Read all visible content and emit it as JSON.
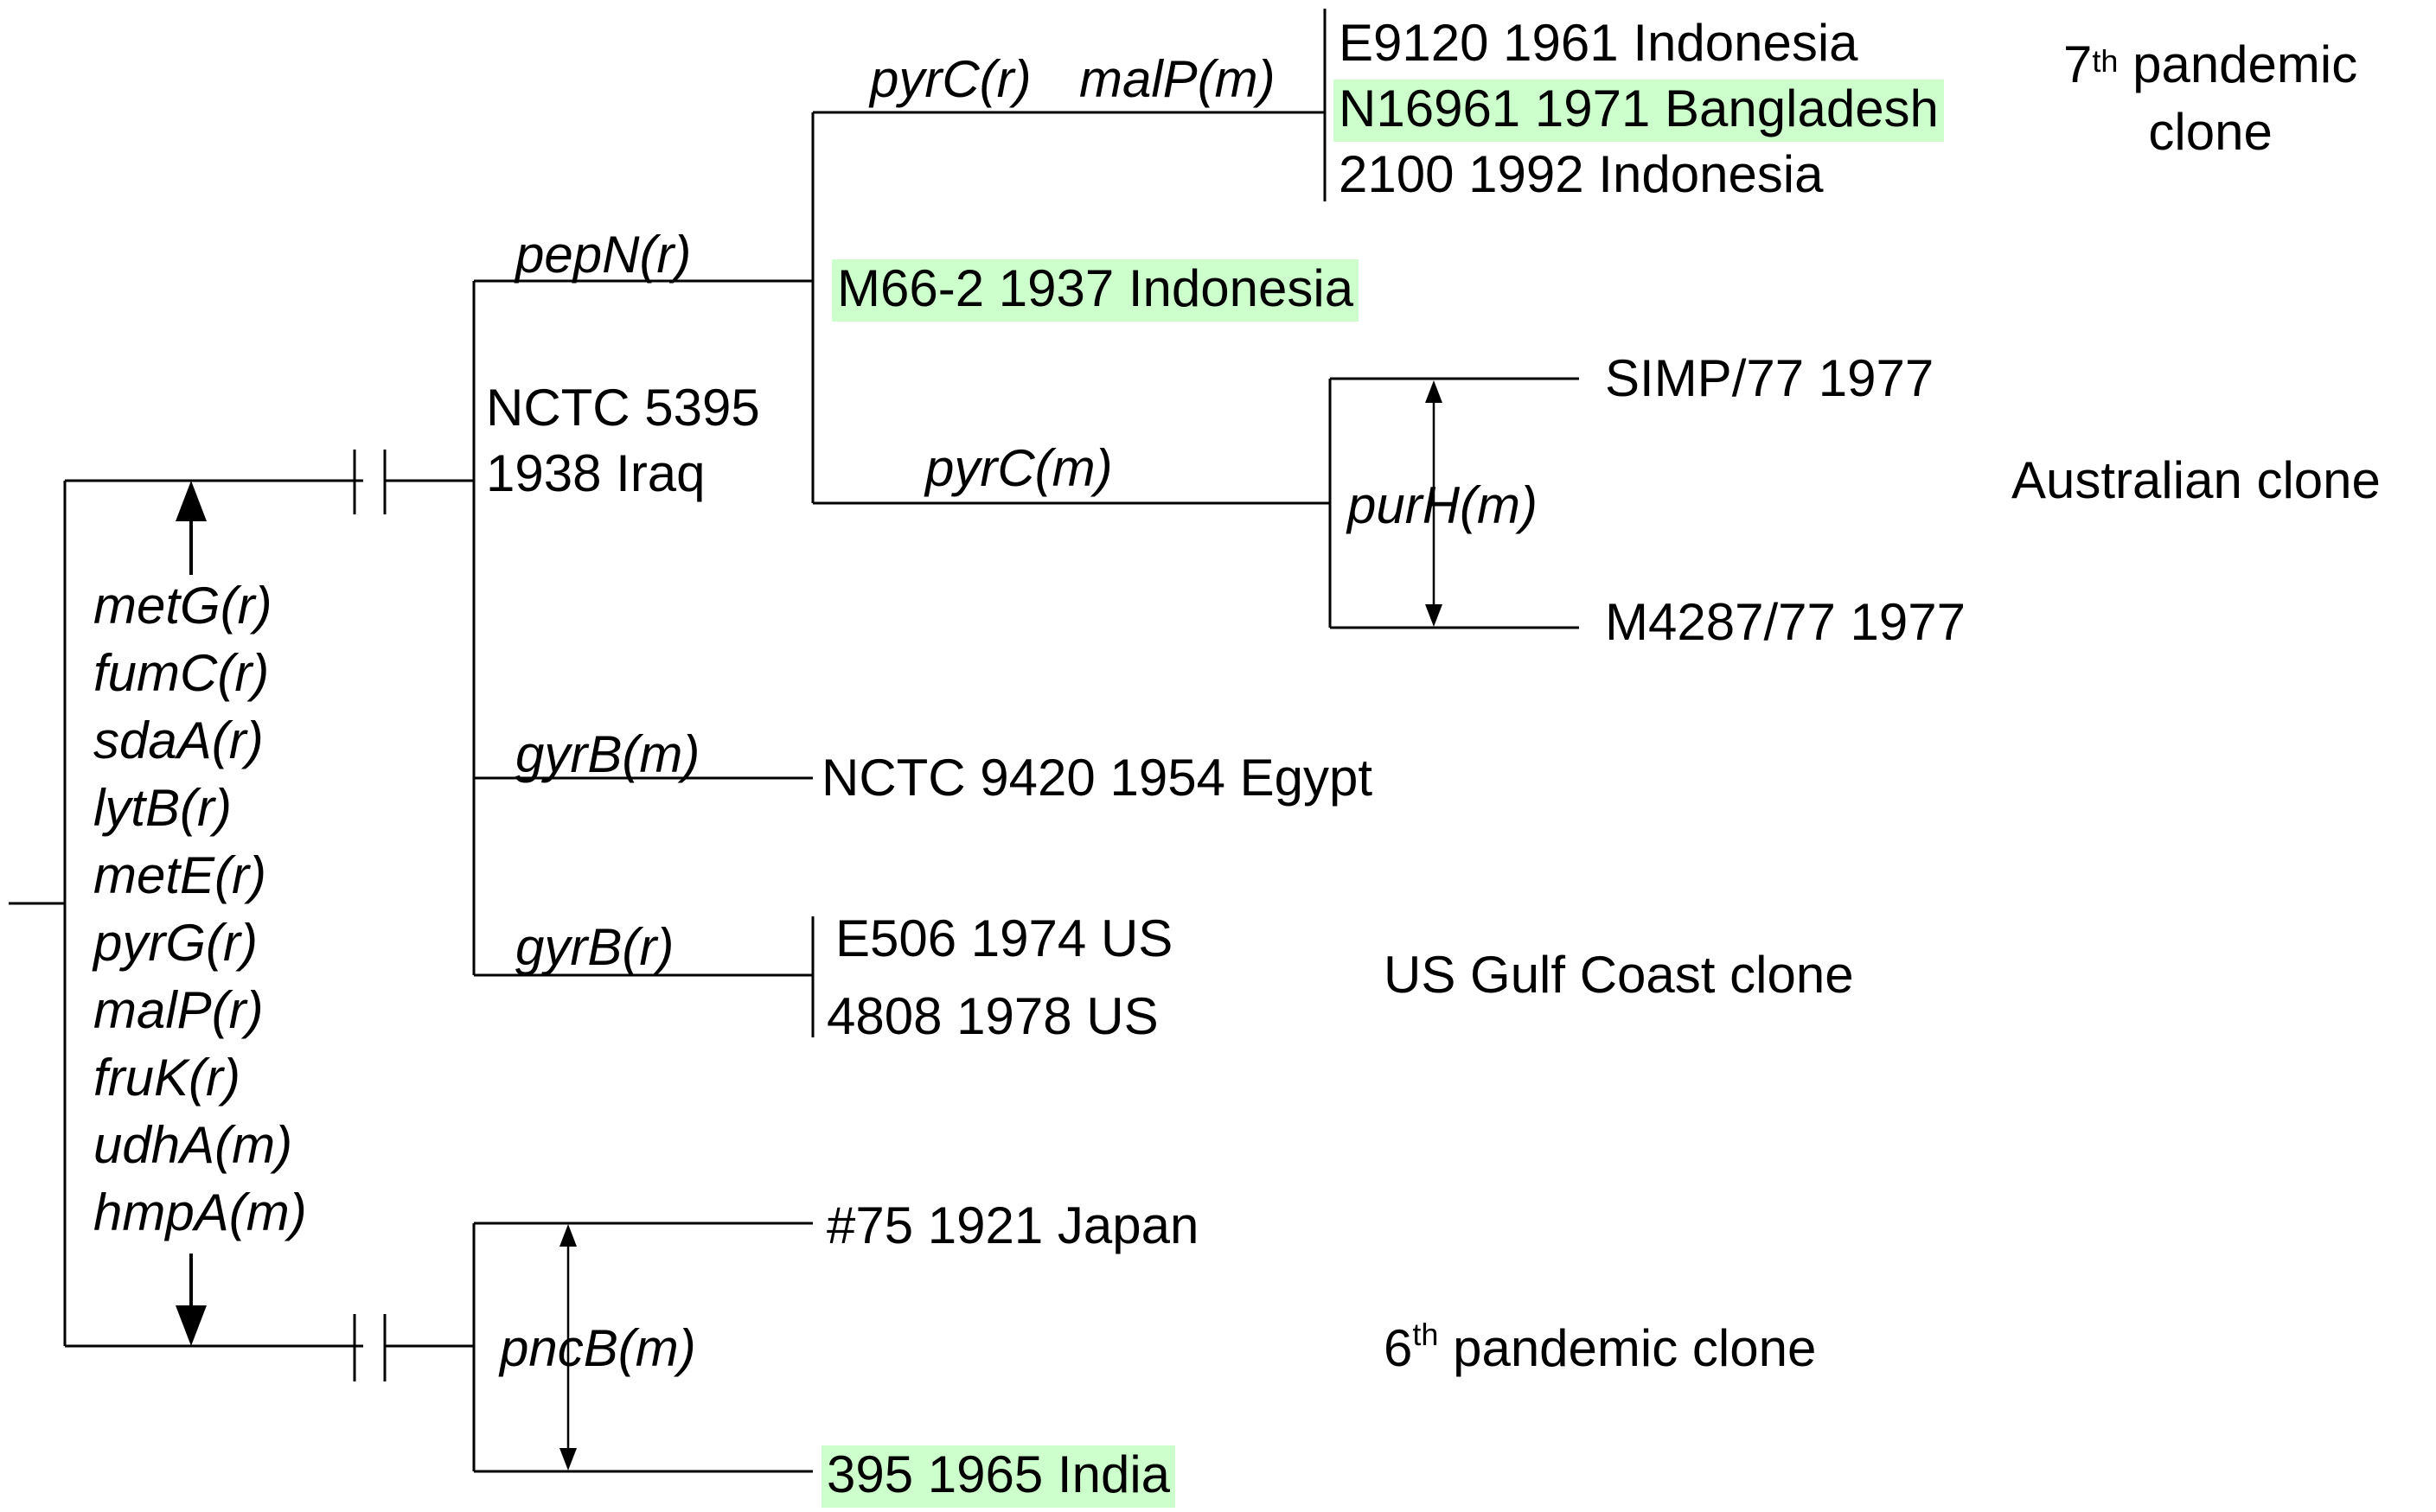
{
  "strains": {
    "e9120": "E9120 1961 Indonesia",
    "n16961": "N16961 1971 Bangladesh",
    "s2100": "2100 1992 Indonesia",
    "m66": "M66-2 1937 Indonesia",
    "simp77": "SIMP/77 1977",
    "m4287": "M4287/77 1977",
    "nctc9420": "NCTC 9420 1954 Egypt",
    "e506": "E506 1974 US",
    "s4808": "4808 1978 US",
    "s75": "#75 1921 Japan",
    "s395": "395 1965 India",
    "nctc5395_line1": "NCTC 5395",
    "nctc5395_line2": "1938 Iraq"
  },
  "branch_labels": {
    "pyrC_r": "pyrC(r)",
    "malP_m": "malP(m)",
    "pepN_r": "pepN(r)",
    "pyrC_m": "pyrC(m)",
    "purH_m": "purH(m)",
    "gyrB_m": "gyrB(m)",
    "gyrB_r": "gyrB(r)",
    "pncB_m": "pncB(m)"
  },
  "root_genes": [
    "metG(r)",
    "fumC(r)",
    "sdaA(r)",
    "lytB(r)",
    "metE(r)",
    "pyrG(r)",
    "malP(r)",
    "fruK(r)",
    "udhA(m)",
    "hmpA(m)"
  ],
  "clones": {
    "seventh_ordinal": "7",
    "seventh_sup": "th",
    "seventh_line1": "pandemic",
    "seventh_line2": "clone",
    "australian": "Australian clone",
    "gulf": "US Gulf Coast clone",
    "sixth_ordinal": "6",
    "sixth_sup": "th",
    "sixth_rest": "pandemic clone"
  },
  "colors": {
    "highlight": "#ccffcc",
    "line": "#000000"
  }
}
